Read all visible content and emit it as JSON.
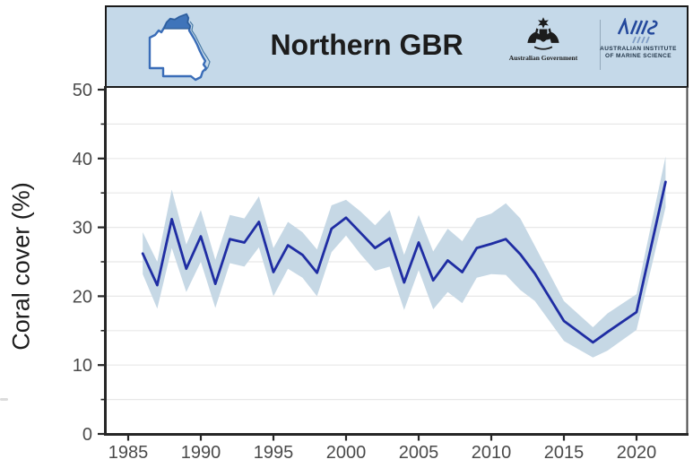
{
  "header": {
    "title": "Northern GBR",
    "government_logo_label": "Australian Government",
    "aims_logo_label_line1": "AUSTRALIAN INSTITUTE",
    "aims_logo_label_line2": "OF MARINE SCIENCE",
    "map_region": "Queensland map with Northern GBR section highlighted"
  },
  "colors": {
    "header_bg": "#c5d9e9",
    "header_border": "#1a1a1a",
    "line": "#1f2da3",
    "band": "#c6d8e5",
    "grid": "#e8e8e8",
    "axis": "#262626",
    "right_border": "#474747",
    "tick_label": "#4a4a4a",
    "title_text": "#1c1c1c",
    "ylabel_text": "#1d1d1d",
    "map_stroke": "#3a6db8",
    "map_highlight": "#3f74ba",
    "aims_blue": "#23489c"
  },
  "chart_data": {
    "type": "line",
    "title": "Northern GBR",
    "xlabel": "",
    "ylabel": "Coral cover (%)",
    "x_range": [
      1983.4,
      2023.5
    ],
    "ylim": [
      0,
      50
    ],
    "grid": "horizontal gridlines every 5 units",
    "legend": "none",
    "band_meaning": "shaded envelope = uncertainty band around mean hard coral cover",
    "x_ticks": [
      {
        "value": 1985,
        "label": "1985"
      },
      {
        "value": 1990,
        "label": "1990"
      },
      {
        "value": 1995,
        "label": "1995"
      },
      {
        "value": 2000,
        "label": "2000"
      },
      {
        "value": 2005,
        "label": "2005"
      },
      {
        "value": 2010,
        "label": "2010"
      },
      {
        "value": 2015,
        "label": "2015"
      },
      {
        "value": 2020,
        "label": "2020"
      }
    ],
    "y_ticks": [
      {
        "value": 0,
        "label": "0"
      },
      {
        "value": 10,
        "label": "10"
      },
      {
        "value": 20,
        "label": "20"
      },
      {
        "value": 30,
        "label": "30"
      },
      {
        "value": 40,
        "label": "40"
      },
      {
        "value": 50,
        "label": "50"
      }
    ],
    "y_minor_ticks": [
      5,
      15,
      25,
      35,
      45
    ],
    "gridlines_y": [
      5,
      10,
      15,
      20,
      25,
      30,
      35,
      40,
      45
    ],
    "series": [
      {
        "name": "Mean hard coral cover (%)",
        "color": "#1f2da3",
        "x": [
          1986,
          1987,
          1988,
          1989,
          1990,
          1991,
          1992,
          1993,
          1994,
          1995,
          1996,
          1997,
          1998,
          1999,
          2000,
          2001,
          2002,
          2003,
          2004,
          2005,
          2006,
          2007,
          2008,
          2009,
          2010,
          2011,
          2012,
          2013,
          2015,
          2017,
          2018,
          2020,
          2022
        ],
        "values": [
          26.2,
          21.6,
          31.2,
          24.0,
          28.7,
          21.8,
          28.3,
          27.8,
          30.8,
          23.5,
          27.4,
          26.0,
          23.4,
          29.8,
          31.4,
          29.2,
          27.0,
          28.4,
          22.0,
          27.8,
          22.3,
          25.2,
          23.5,
          27.0,
          27.6,
          28.3,
          26.1,
          23.3,
          16.4,
          13.3,
          14.8,
          17.7,
          36.6
        ]
      }
    ],
    "band": {
      "name": "confidence interval",
      "color": "#c6d8e5",
      "upper": [
        29.3,
        25.0,
        35.5,
        27.5,
        32.5,
        25.3,
        31.8,
        31.3,
        34.5,
        27.0,
        30.8,
        29.3,
        26.8,
        33.2,
        34.0,
        32.3,
        30.3,
        32.5,
        26.0,
        31.8,
        26.5,
        29.8,
        28.0,
        31.3,
        32.0,
        33.5,
        31.3,
        27.3,
        19.3,
        15.5,
        17.5,
        20.3,
        40.3
      ],
      "lower": [
        23.2,
        18.2,
        27.0,
        20.6,
        25.0,
        18.3,
        24.8,
        24.3,
        27.1,
        20.0,
        24.0,
        22.7,
        20.0,
        26.4,
        28.8,
        26.1,
        23.7,
        24.3,
        18.0,
        23.8,
        18.1,
        20.6,
        19.0,
        22.7,
        23.2,
        23.1,
        20.9,
        19.3,
        13.5,
        11.1,
        12.1,
        15.1,
        32.9
      ]
    }
  }
}
